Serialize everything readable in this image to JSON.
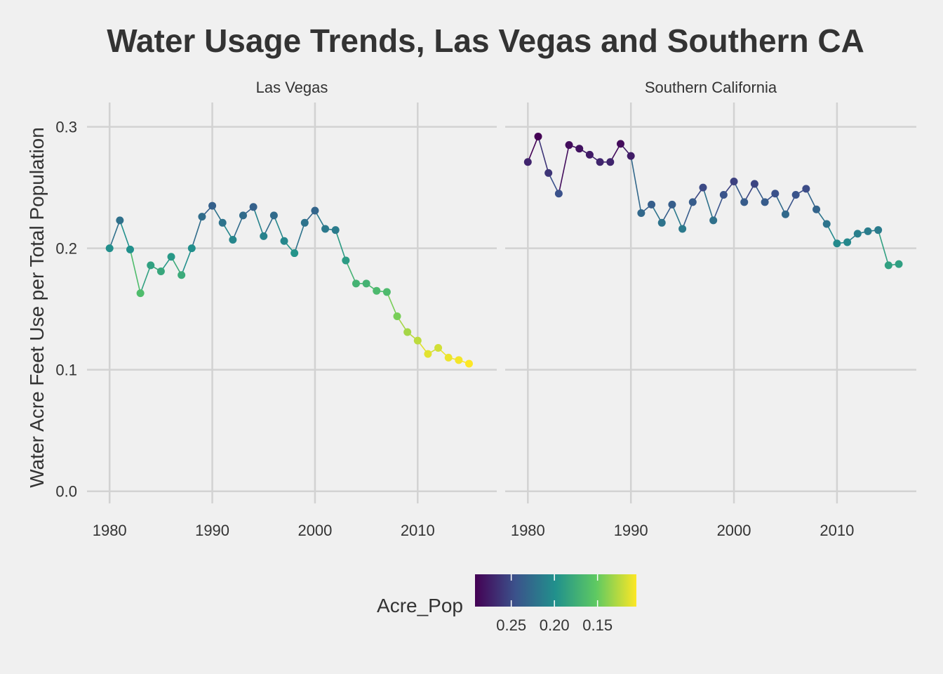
{
  "chart_data": {
    "type": "line",
    "title": "Water Usage Trends, Las Vegas and Southern CA",
    "ylabel": "Water Acre Feet Use per Total Population",
    "xlabel": "",
    "xlim": [
      1977.8,
      2017.7
    ],
    "ylim": [
      -0.01,
      0.32
    ],
    "x_ticks": [
      1980,
      1990,
      2000,
      2010
    ],
    "x_tick_labels": [
      "1980",
      "1990",
      "2000",
      "2010"
    ],
    "y_ticks": [
      0.0,
      0.1,
      0.2,
      0.3
    ],
    "y_tick_labels": [
      "0.0",
      "0.1",
      "0.2",
      "0.3"
    ],
    "grid": true,
    "legend": {
      "title": "Acre_Pop",
      "position": "bottom",
      "type": "colorbar",
      "scale": "viridis",
      "reversed": true,
      "range": [
        0.105,
        0.292
      ],
      "ticks": [
        0.25,
        0.2,
        0.15
      ],
      "tick_labels": [
        "0.25",
        "0.20",
        "0.15"
      ],
      "colors": [
        "#440154",
        "#3b528b",
        "#21918c",
        "#5ec962",
        "#fde725"
      ]
    },
    "panels": [
      {
        "name": "Las Vegas",
        "x": [
          1980,
          1981,
          1982,
          1983,
          1984,
          1985,
          1986,
          1987,
          1988,
          1989,
          1990,
          1991,
          1992,
          1993,
          1994,
          1995,
          1996,
          1997,
          1998,
          1999,
          2000,
          2001,
          2002,
          2003,
          2004,
          2005,
          2006,
          2007,
          2008,
          2009,
          2010,
          2011,
          2012,
          2013,
          2014,
          2015
        ],
        "y": [
          0.2,
          0.223,
          0.199,
          0.163,
          0.186,
          0.181,
          0.193,
          0.178,
          0.2,
          0.226,
          0.235,
          0.221,
          0.207,
          0.227,
          0.234,
          0.21,
          0.227,
          0.206,
          0.196,
          0.221,
          0.231,
          0.216,
          0.215,
          0.19,
          0.171,
          0.171,
          0.165,
          0.164,
          0.144,
          0.131,
          0.124,
          0.113,
          0.118,
          0.11,
          0.108,
          0.105
        ]
      },
      {
        "name": "Southern California",
        "x": [
          1980,
          1981,
          1982,
          1983,
          1984,
          1985,
          1986,
          1987,
          1988,
          1989,
          1990,
          1991,
          1992,
          1993,
          1994,
          1995,
          1996,
          1997,
          1998,
          1999,
          2000,
          2001,
          2002,
          2003,
          2004,
          2005,
          2006,
          2007,
          2008,
          2009,
          2010,
          2011,
          2012,
          2013,
          2014,
          2015,
          2016
        ],
        "y": [
          0.271,
          0.292,
          0.262,
          0.245,
          0.285,
          0.282,
          0.277,
          0.271,
          0.271,
          0.286,
          0.276,
          0.229,
          0.236,
          0.221,
          0.236,
          0.216,
          0.238,
          0.25,
          0.223,
          0.244,
          0.255,
          0.238,
          0.253,
          0.238,
          0.245,
          0.228,
          0.244,
          0.249,
          0.232,
          0.22,
          0.204,
          0.205,
          0.212,
          0.214,
          0.215,
          0.186,
          0.187
        ]
      }
    ]
  }
}
